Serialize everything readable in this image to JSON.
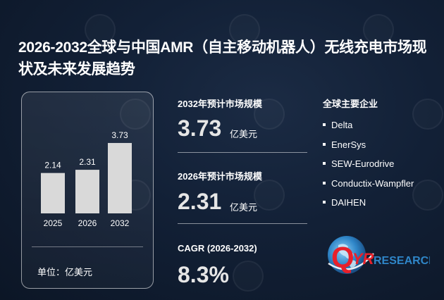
{
  "title": "2026-2032全球与中国AMR（自主移动机器人）无线充电市场现状及未来发展趋势",
  "chart_data": {
    "type": "bar",
    "categories": [
      "2025",
      "2026",
      "2032"
    ],
    "values": [
      2.14,
      2.31,
      3.73
    ],
    "value_labels": [
      "2.14",
      "2.31",
      "3.73"
    ],
    "unit_label": "单位：亿美元",
    "color": "#d9d9d9"
  },
  "stats": {
    "s2032": {
      "label": "2032年预计市场规模",
      "value": "3.73",
      "unit": "亿美元"
    },
    "s2026": {
      "label": "2026年预计市场规模",
      "value": "2.31",
      "unit": "亿美元"
    },
    "cagr": {
      "label": "CAGR (2026-2032)",
      "value": "8.3%"
    }
  },
  "companies": {
    "heading": "全球主要企业",
    "items": [
      "Delta",
      "EnerSys",
      "SEW-Eurodrive",
      "Conductix-Wampfler",
      "DAIHEN"
    ]
  },
  "logo": {
    "q": "Q",
    "yr": "YR",
    "research": "RESEARCH"
  },
  "colors": {
    "accent_red": "#e8202a",
    "accent_blue": "#2f86c8",
    "bar": "#d9d9d9"
  }
}
